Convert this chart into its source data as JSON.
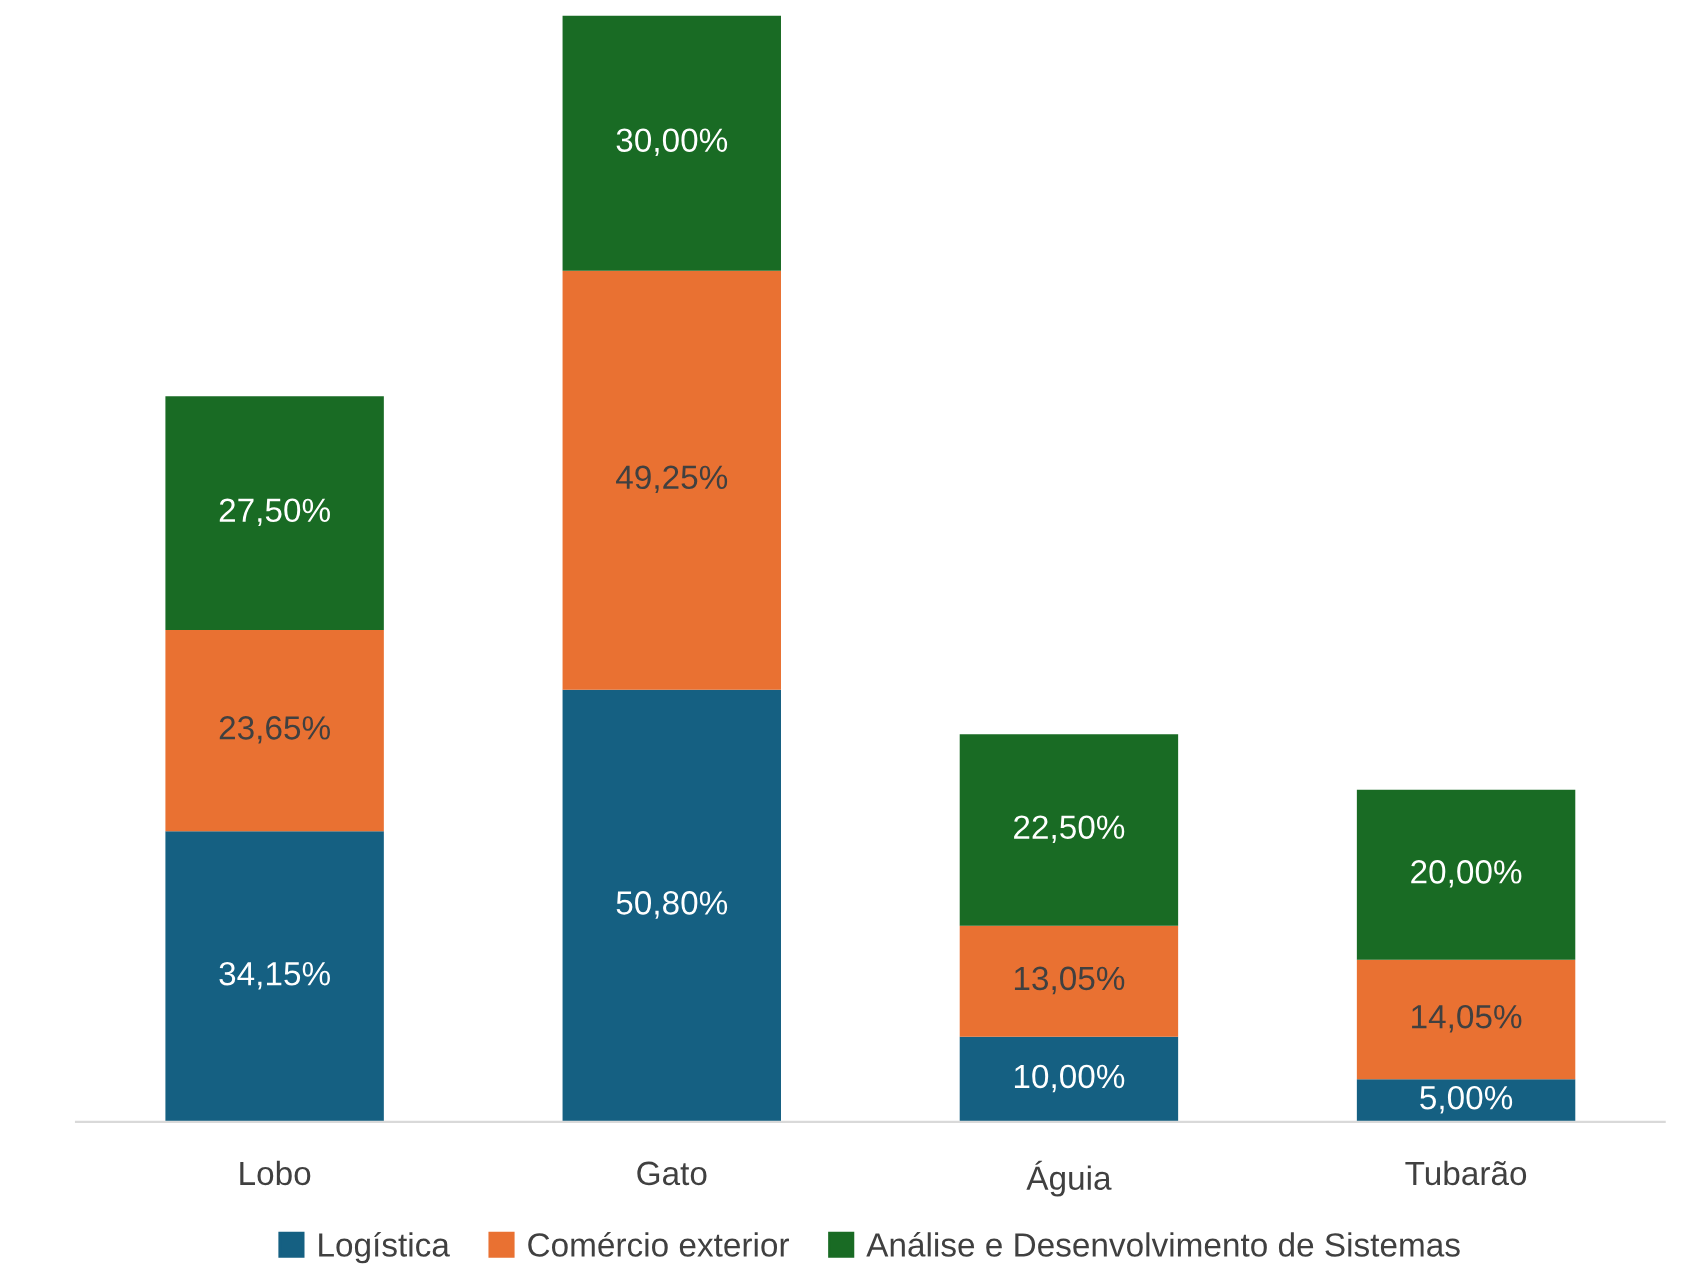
{
  "chart_data": {
    "type": "bar",
    "stacked": true,
    "categories": [
      "Lobo",
      "Gato",
      "Águia",
      "Tubarão"
    ],
    "series": [
      {
        "name": "Logística",
        "color": "#156082",
        "values": [
          34.15,
          50.8,
          10.0,
          5.0
        ],
        "value_labels": [
          "34,15%",
          "50,80%",
          "10,00%",
          "5,00%"
        ]
      },
      {
        "name": "Comércio exterior",
        "color": "#e97132",
        "values": [
          23.65,
          49.25,
          13.05,
          14.05
        ],
        "value_labels": [
          "23,65%",
          "49,25%",
          "13,05%",
          "14,05%"
        ]
      },
      {
        "name": "Análise e Desenvolvimento de Sistemas",
        "color": "#196b24",
        "values": [
          27.5,
          30.0,
          22.5,
          20.0
        ],
        "value_labels": [
          "27,50%",
          "30,00%",
          "22,50%",
          "20,00%"
        ]
      }
    ],
    "legend": "bottom",
    "grid": false,
    "tick_labels": "x"
  }
}
